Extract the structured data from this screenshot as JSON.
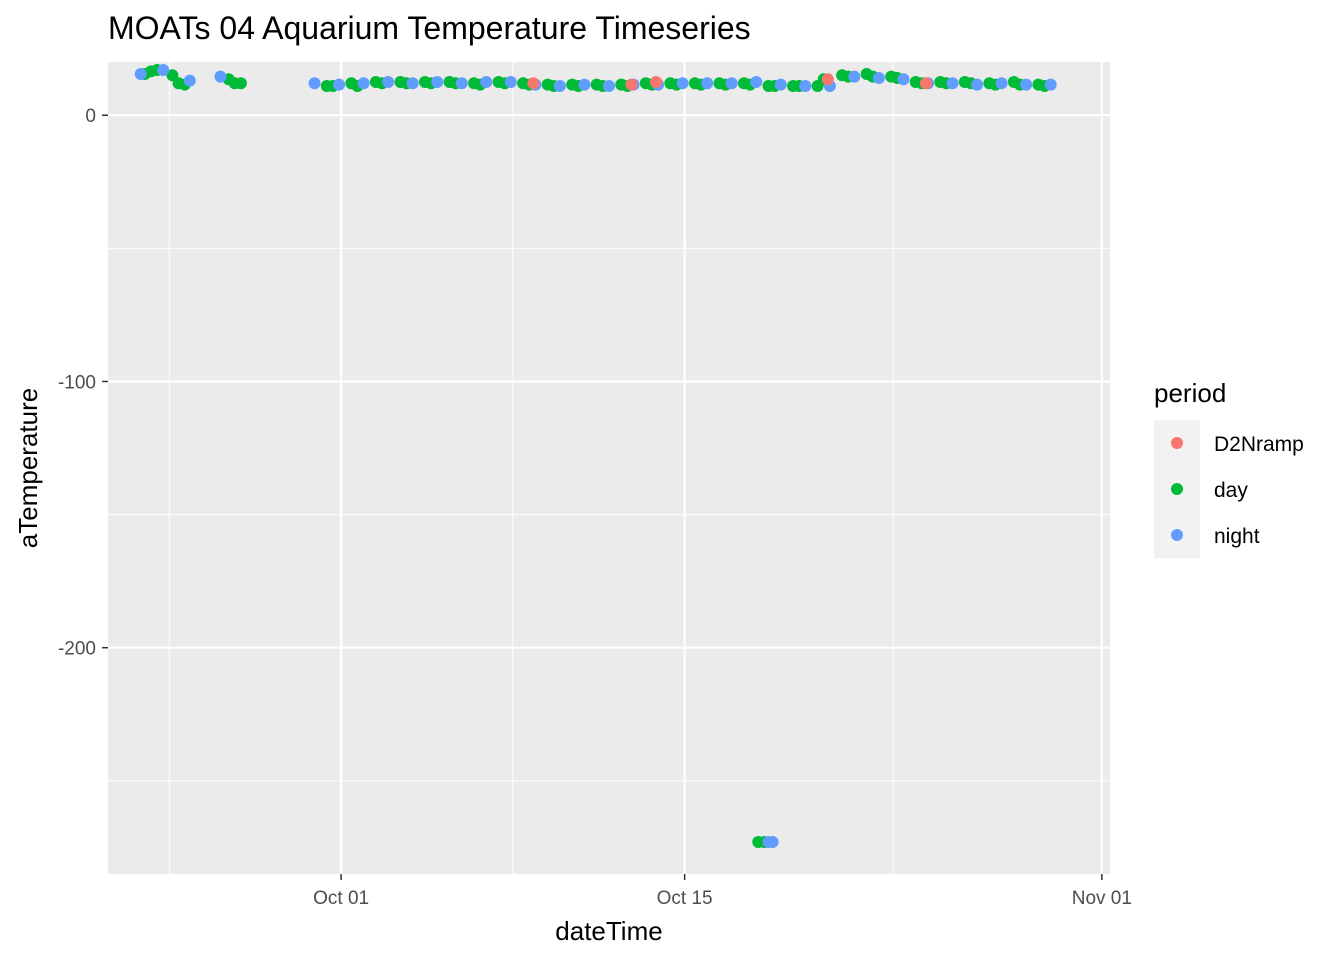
{
  "chart_data": {
    "type": "scatter",
    "title": "MOATs 04 Aquarium Temperature Timeseries",
    "xlabel": "dateTime",
    "ylabel": "aTemperature",
    "x_axis": "date",
    "xlim": [
      "2019-09-24",
      "2019-11-01"
    ],
    "ylim": [
      -285,
      20
    ],
    "x_ticks": [
      {
        "label": "Oct 01",
        "date": "2019-10-01"
      },
      {
        "label": "Oct 15",
        "date": "2019-10-15"
      },
      {
        "label": "Nov 01",
        "date": "2019-11-01"
      }
    ],
    "y_ticks": [
      {
        "label": "0",
        "value": 0
      },
      {
        "label": "-100",
        "value": -100
      },
      {
        "label": "-200",
        "value": -200
      }
    ],
    "grid": true,
    "legend": {
      "title": "period",
      "position": "right",
      "entries": [
        {
          "label": "D2Nramp",
          "color": "#F8766D"
        },
        {
          "label": "day",
          "color": "#00BA38"
        },
        {
          "label": "night",
          "color": "#619CFF"
        }
      ]
    },
    "series": [
      {
        "name": "D2Nramp",
        "color": "#F8766D",
        "points": [
          [
            "2019-10-08T20:00",
            12.0
          ],
          [
            "2019-10-12T20:00",
            11.5
          ],
          [
            "2019-10-13T20:00",
            12.5
          ],
          [
            "2019-10-20T20:00",
            13.5
          ],
          [
            "2019-10-24T20:00",
            12.0
          ]
        ]
      },
      {
        "name": "day",
        "color": "#00BA38",
        "points": [
          [
            "2019-09-23T00:00",
            15.5
          ],
          [
            "2019-09-23T06:00",
            16.5
          ],
          [
            "2019-09-23T12:00",
            17.0
          ],
          [
            "2019-09-24T03:00",
            15.0
          ],
          [
            "2019-09-24T09:00",
            12.0
          ],
          [
            "2019-09-24T15:00",
            11.5
          ],
          [
            "2019-09-26T10:00",
            13.5
          ],
          [
            "2019-09-26T16:00",
            12.0
          ],
          [
            "2019-09-26T22:00",
            12.0
          ],
          [
            "2019-09-30T10:00",
            11.0
          ],
          [
            "2019-09-30T16:00",
            11.0
          ],
          [
            "2019-10-01T10:00",
            12.0
          ],
          [
            "2019-10-01T16:00",
            11.0
          ],
          [
            "2019-10-02T10:00",
            12.5
          ],
          [
            "2019-10-02T16:00",
            12.0
          ],
          [
            "2019-10-03T10:00",
            12.5
          ],
          [
            "2019-10-03T16:00",
            12.0
          ],
          [
            "2019-10-04T10:00",
            12.5
          ],
          [
            "2019-10-04T16:00",
            12.0
          ],
          [
            "2019-10-05T10:00",
            12.5
          ],
          [
            "2019-10-05T16:00",
            12.0
          ],
          [
            "2019-10-06T10:00",
            12.0
          ],
          [
            "2019-10-06T16:00",
            11.5
          ],
          [
            "2019-10-07T10:00",
            12.5
          ],
          [
            "2019-10-07T16:00",
            12.0
          ],
          [
            "2019-10-08T10:00",
            12.0
          ],
          [
            "2019-10-08T16:00",
            11.5
          ],
          [
            "2019-10-09T10:00",
            11.5
          ],
          [
            "2019-10-09T16:00",
            11.0
          ],
          [
            "2019-10-10T10:00",
            11.5
          ],
          [
            "2019-10-10T16:00",
            11.0
          ],
          [
            "2019-10-11T10:00",
            11.5
          ],
          [
            "2019-10-11T16:00",
            11.0
          ],
          [
            "2019-10-12T10:00",
            11.5
          ],
          [
            "2019-10-12T16:00",
            11.0
          ],
          [
            "2019-10-13T10:00",
            12.0
          ],
          [
            "2019-10-13T16:00",
            11.5
          ],
          [
            "2019-10-14T10:00",
            12.0
          ],
          [
            "2019-10-14T16:00",
            11.5
          ],
          [
            "2019-10-15T10:00",
            12.0
          ],
          [
            "2019-10-15T16:00",
            11.5
          ],
          [
            "2019-10-16T10:00",
            12.0
          ],
          [
            "2019-10-16T16:00",
            11.5
          ],
          [
            "2019-10-17T10:00",
            12.0
          ],
          [
            "2019-10-17T16:00",
            11.5
          ],
          [
            "2019-10-18T10:00",
            11.0
          ],
          [
            "2019-10-18T16:00",
            11.0
          ],
          [
            "2019-10-19T10:00",
            11.0
          ],
          [
            "2019-10-19T16:00",
            11.0
          ],
          [
            "2019-10-20T10:00",
            11.0
          ],
          [
            "2019-10-20T16:00",
            13.5
          ],
          [
            "2019-10-21T10:00",
            15.0
          ],
          [
            "2019-10-21T16:00",
            14.5
          ],
          [
            "2019-10-22T10:00",
            15.5
          ],
          [
            "2019-10-22T16:00",
            14.5
          ],
          [
            "2019-10-23T10:00",
            14.5
          ],
          [
            "2019-10-23T16:00",
            14.0
          ],
          [
            "2019-10-24T10:00",
            12.5
          ],
          [
            "2019-10-24T16:00",
            12.0
          ],
          [
            "2019-10-25T10:00",
            12.5
          ],
          [
            "2019-10-25T16:00",
            12.0
          ],
          [
            "2019-10-26T10:00",
            12.5
          ],
          [
            "2019-10-26T16:00",
            12.0
          ],
          [
            "2019-10-27T10:00",
            12.0
          ],
          [
            "2019-10-27T16:00",
            11.5
          ],
          [
            "2019-10-28T10:00",
            12.5
          ],
          [
            "2019-10-28T16:00",
            11.5
          ],
          [
            "2019-10-29T10:00",
            11.5
          ],
          [
            "2019-10-29T16:00",
            11.0
          ],
          [
            "2019-10-18T00:00",
            -273.0
          ],
          [
            "2019-10-18T06:00",
            -273.0
          ]
        ]
      },
      {
        "name": "night",
        "color": "#619CFF",
        "points": [
          [
            "2019-09-22T20:00",
            15.5
          ],
          [
            "2019-09-23T18:00",
            17.0
          ],
          [
            "2019-09-24T20:00",
            13.0
          ],
          [
            "2019-09-26T02:00",
            14.5
          ],
          [
            "2019-09-29T22:00",
            12.0
          ],
          [
            "2019-09-30T22:00",
            11.5
          ],
          [
            "2019-10-01T22:00",
            12.0
          ],
          [
            "2019-10-02T22:00",
            12.5
          ],
          [
            "2019-10-03T22:00",
            12.0
          ],
          [
            "2019-10-04T22:00",
            12.5
          ],
          [
            "2019-10-05T22:00",
            12.0
          ],
          [
            "2019-10-06T22:00",
            12.5
          ],
          [
            "2019-10-07T22:00",
            12.5
          ],
          [
            "2019-10-08T22:00",
            11.5
          ],
          [
            "2019-10-09T22:00",
            11.0
          ],
          [
            "2019-10-10T22:00",
            11.5
          ],
          [
            "2019-10-11T22:00",
            11.0
          ],
          [
            "2019-10-12T22:00",
            11.5
          ],
          [
            "2019-10-13T22:00",
            11.5
          ],
          [
            "2019-10-14T22:00",
            12.0
          ],
          [
            "2019-10-15T22:00",
            12.0
          ],
          [
            "2019-10-16T22:00",
            12.0
          ],
          [
            "2019-10-17T22:00",
            12.5
          ],
          [
            "2019-10-18T22:00",
            11.5
          ],
          [
            "2019-10-19T22:00",
            11.0
          ],
          [
            "2019-10-20T22:00",
            11.0
          ],
          [
            "2019-10-21T22:00",
            14.5
          ],
          [
            "2019-10-22T22:00",
            14.0
          ],
          [
            "2019-10-23T22:00",
            13.5
          ],
          [
            "2019-10-24T22:00",
            12.0
          ],
          [
            "2019-10-25T22:00",
            12.0
          ],
          [
            "2019-10-26T22:00",
            11.5
          ],
          [
            "2019-10-27T22:00",
            12.0
          ],
          [
            "2019-10-28T22:00",
            11.5
          ],
          [
            "2019-10-29T22:00",
            11.5
          ],
          [
            "2019-10-18T10:00",
            -273.0
          ],
          [
            "2019-10-18T14:00",
            -273.0
          ]
        ]
      }
    ]
  }
}
